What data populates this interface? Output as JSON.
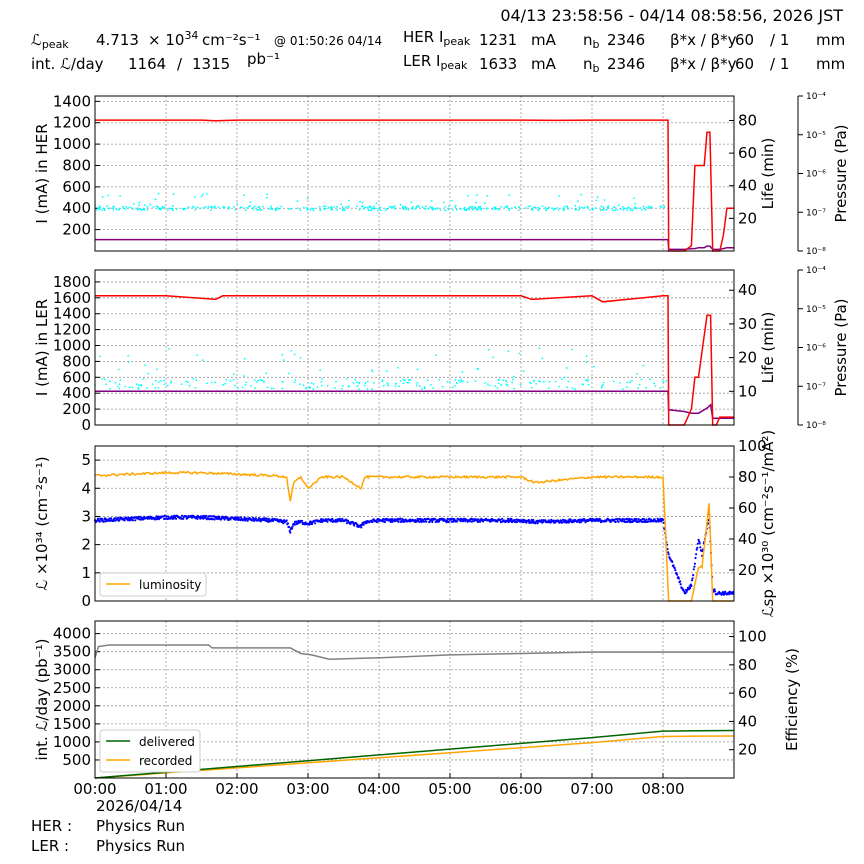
{
  "header": {
    "time_range": "04/13 23:58:56 - 04/14 08:58:56, 2026 JST",
    "lpeak_label": "ℒ",
    "lpeak_sub": "peak",
    "lpeak_value": "4.713",
    "lpeak_mult": "× 10",
    "lpeak_exp": "34",
    "lpeak_unit": "cm⁻²s⁻¹",
    "lpeak_time": "@ 01:50:26 04/14",
    "intl_label": "int. ℒ/day",
    "intl_value": "1164",
    "intl_sep": "/",
    "intl_total": "1315",
    "intl_unit": "pb⁻¹",
    "her_label": "HER I",
    "her_sub": "peak",
    "her_value": "1231",
    "ler_label": "LER I",
    "ler_sub": "peak",
    "ler_value": "1633",
    "current_unit": "mA",
    "nb_label": "n",
    "nb_sub": "b",
    "her_nb": "2346",
    "ler_nb": "2346",
    "beta_label": "β*x / β*y",
    "beta_x": "60",
    "beta_y_sep": "/ 1",
    "beta_unit": "mm"
  },
  "footer": {
    "date": "2026/04/14",
    "her_label": "HER :",
    "her_status": "Physics Run",
    "ler_label": "LER :",
    "ler_status": "Physics Run"
  },
  "colors": {
    "current": "#ff0000",
    "lifetime": "#800080",
    "pressure": "#00ffff",
    "luminosity": "#ffa500",
    "specific_lumi": "#0000ff",
    "delivered": "#006400",
    "recorded": "#ffa500",
    "efficiency": "#808080"
  },
  "chart_data": [
    {
      "type": "line",
      "name": "her_panel",
      "ylabel": "I (mA) in HER",
      "y2label": "Life (min)",
      "y3label": "Pressure (Pa)",
      "xlim": [
        0,
        9
      ],
      "ylim": [
        0,
        1450
      ],
      "yticks": [
        200,
        400,
        600,
        800,
        1000,
        1200,
        1400
      ],
      "y2lim": [
        0,
        95
      ],
      "y2ticks": [
        20,
        40,
        60,
        80
      ],
      "y3ticks": [
        "10⁻⁴",
        "10⁻⁵",
        "10⁻⁶",
        "10⁻⁷",
        "10⁻⁸"
      ],
      "x": [
        0,
        0.5,
        1,
        1.5,
        1.7,
        2,
        3,
        4,
        5,
        6,
        6.5,
        7,
        7.5,
        8,
        8.07,
        8.08,
        8.3,
        8.4,
        8.45,
        8.5,
        8.58,
        8.62,
        8.66,
        8.7,
        8.72,
        8.8,
        8.85,
        8.9,
        9
      ],
      "current": [
        1225,
        1225,
        1225,
        1225,
        1218,
        1225,
        1225,
        1225,
        1225,
        1225,
        1222,
        1225,
        1225,
        1225,
        1225,
        0,
        0,
        50,
        800,
        800,
        800,
        1110,
        1110,
        0,
        0,
        0,
        150,
        400,
        400
      ],
      "lifetime": [
        7,
        7,
        7,
        7,
        7,
        7,
        7,
        7,
        7,
        7,
        7,
        7,
        7,
        7,
        7,
        1,
        1,
        1.5,
        1.5,
        2,
        2,
        3,
        3,
        1,
        1,
        1,
        1.5,
        2,
        2
      ],
      "pressure_band": [
        380,
        420
      ]
    },
    {
      "type": "line",
      "name": "ler_panel",
      "ylabel": "I (mA) in LER",
      "y2label": "Life (min)",
      "y3label": "Pressure (Pa)",
      "xlim": [
        0,
        9
      ],
      "ylim": [
        0,
        1950
      ],
      "yticks": [
        0,
        200,
        400,
        600,
        800,
        1000,
        1200,
        1400,
        1600,
        1800
      ],
      "y2lim": [
        0,
        46
      ],
      "y2ticks": [
        10,
        20,
        30,
        40
      ],
      "y3ticks": [
        "10⁻⁴",
        "10⁻⁵",
        "10⁻⁶",
        "10⁻⁷",
        "10⁻⁸"
      ],
      "x": [
        0,
        1,
        1.7,
        1.8,
        2,
        3,
        4,
        5,
        6,
        6.15,
        7,
        7.15,
        8,
        8.07,
        8.08,
        8.3,
        8.4,
        8.45,
        8.5,
        8.62,
        8.67,
        8.7,
        8.75,
        8.8,
        9
      ],
      "current": [
        1625,
        1625,
        1580,
        1625,
        1625,
        1625,
        1625,
        1625,
        1625,
        1580,
        1625,
        1550,
        1625,
        1625,
        0,
        0,
        200,
        600,
        600,
        1380,
        1380,
        0,
        0,
        100,
        100
      ],
      "lifetime": [
        10,
        10,
        10,
        10,
        10,
        10,
        10,
        10,
        10,
        10,
        10,
        10,
        10,
        10,
        4.5,
        4,
        3.5,
        3.5,
        3.5,
        5,
        6,
        2,
        2,
        2,
        2
      ],
      "pressure_band": [
        450,
        580
      ]
    },
    {
      "type": "line",
      "name": "lumi_panel",
      "ylabel": "ℒ ×10³⁴ (cm⁻²s⁻¹)",
      "y2label": "ℒsp ×10³⁰ (cm⁻²s⁻¹/mA²)",
      "xlim": [
        0,
        9
      ],
      "ylim": [
        0,
        5.5
      ],
      "yticks": [
        0,
        1,
        2,
        3,
        4,
        5
      ],
      "y2lim": [
        0,
        100
      ],
      "y2ticks": [
        20,
        40,
        60,
        80,
        100
      ],
      "legend": [
        "luminosity"
      ],
      "legend_loc": "lower-left",
      "x": [
        0,
        0.5,
        1,
        1.5,
        2,
        2.5,
        2.7,
        2.75,
        2.8,
        2.9,
        3.0,
        3.2,
        3.5,
        3.75,
        3.8,
        4,
        5,
        6,
        6.2,
        7,
        7.5,
        8,
        8.08,
        8.3,
        8.4,
        8.5,
        8.55,
        8.65,
        8.7,
        8.75,
        9
      ],
      "luminosity": [
        4.45,
        4.5,
        4.55,
        4.55,
        4.5,
        4.45,
        4.4,
        3.5,
        4.2,
        4.4,
        4.0,
        4.4,
        4.4,
        4.0,
        4.4,
        4.4,
        4.4,
        4.4,
        4.2,
        4.4,
        4.4,
        4.4,
        0,
        0,
        0,
        1.2,
        1.2,
        3.5,
        0,
        0,
        0
      ],
      "specific": [
        52,
        53,
        54,
        54,
        53,
        52,
        51,
        45,
        50,
        51,
        50,
        52,
        52,
        48,
        51,
        52,
        52,
        52,
        51,
        52,
        52,
        52,
        30,
        5,
        10,
        40,
        30,
        55,
        8,
        5,
        5
      ]
    },
    {
      "type": "line",
      "name": "intlumi_panel",
      "ylabel": "int. ℒ/day (pb⁻¹)",
      "y2label": "Efficiency (%)",
      "xlim": [
        0,
        9
      ],
      "xticks": [
        "00:00",
        "01:00",
        "02:00",
        "03:00",
        "04:00",
        "05:00",
        "06:00",
        "07:00",
        "08:00"
      ],
      "ylim": [
        0,
        4350
      ],
      "yticks": [
        500,
        1000,
        1500,
        2000,
        2500,
        3000,
        3500,
        4000
      ],
      "y2lim": [
        0,
        111
      ],
      "y2ticks": [
        20,
        40,
        60,
        80,
        100
      ],
      "legend": [
        "delivered",
        "recorded"
      ],
      "legend_loc": "lower-left",
      "x": [
        0,
        1,
        2,
        3,
        4,
        5,
        6,
        7,
        8,
        8.5,
        9
      ],
      "delivered": [
        0,
        160,
        320,
        480,
        640,
        800,
        960,
        1120,
        1300,
        1310,
        1315
      ],
      "recorded": [
        0,
        140,
        280,
        420,
        560,
        700,
        840,
        980,
        1150,
        1160,
        1164
      ],
      "efficiency_x": [
        0,
        0.05,
        0.2,
        1.6,
        1.65,
        2.75,
        2.9,
        3.05,
        3.3,
        4,
        5,
        6,
        7,
        8,
        9
      ],
      "efficiency": [
        85,
        93,
        94,
        94,
        92,
        92,
        88,
        87,
        84,
        85,
        87,
        88,
        89,
        89,
        89
      ]
    }
  ]
}
